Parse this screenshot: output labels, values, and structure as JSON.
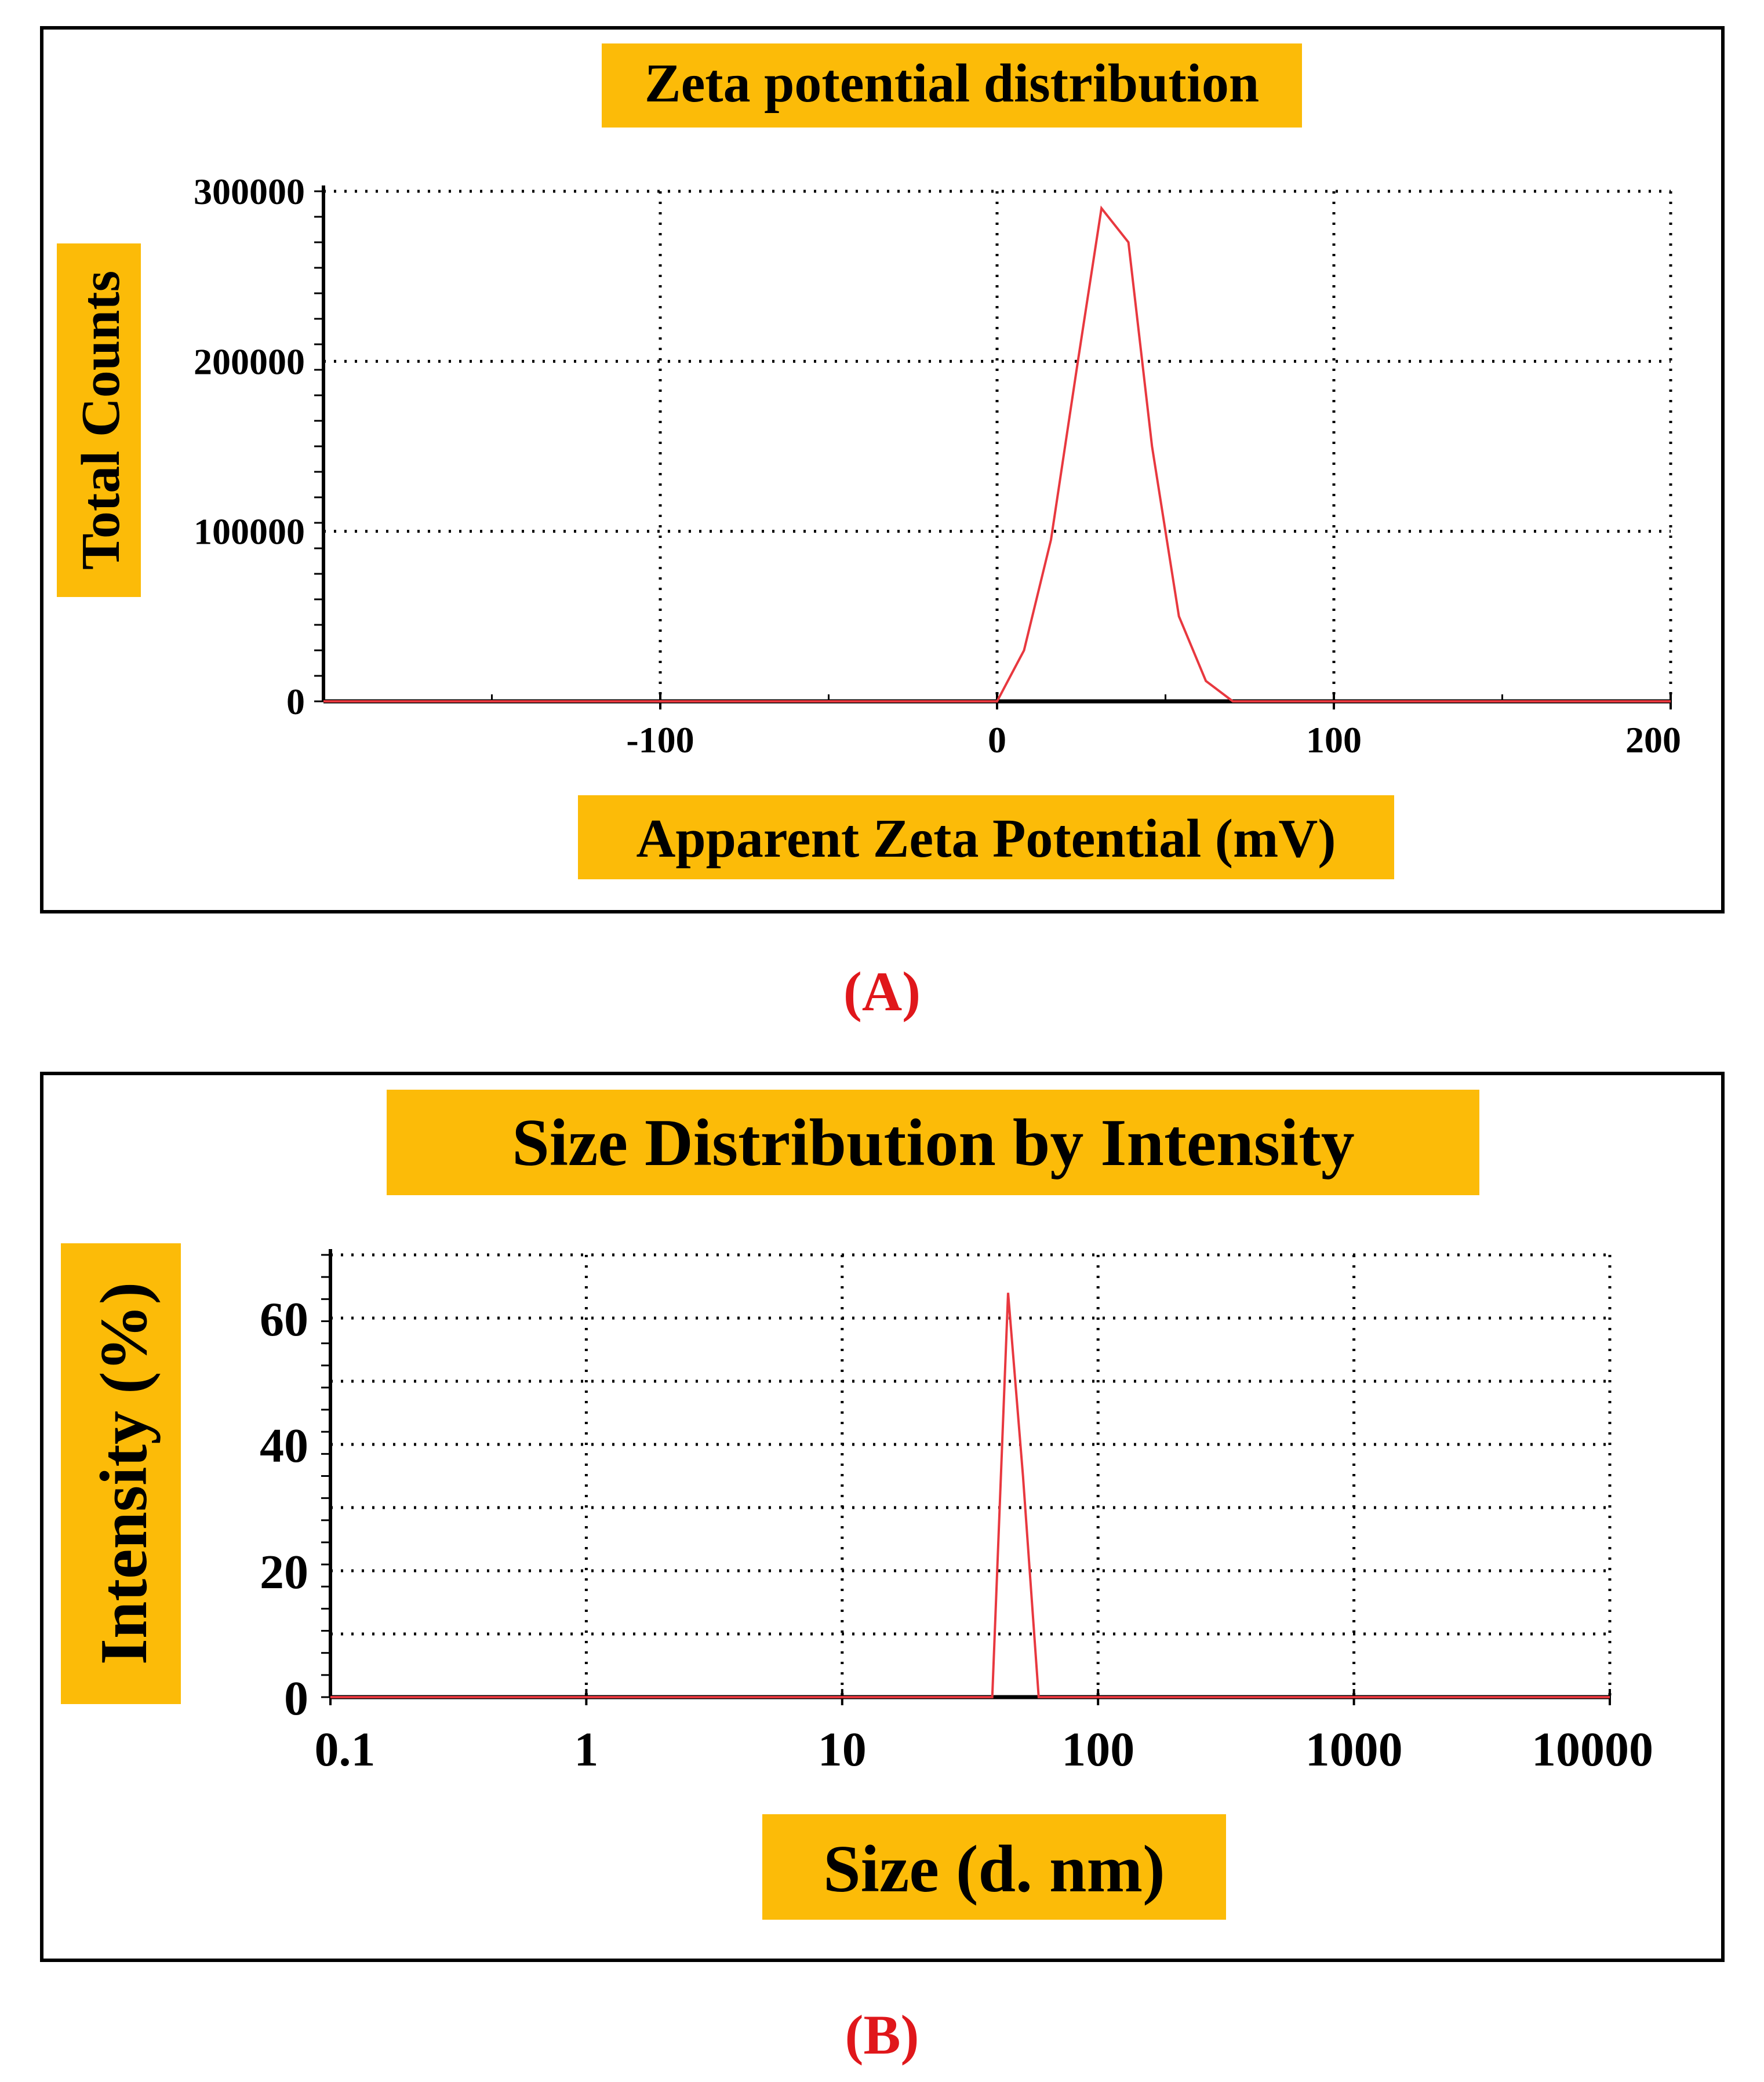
{
  "colors": {
    "highlight": "#FCBB08",
    "series": "#E8383F",
    "caption": "#E0171B",
    "axis": "#000000"
  },
  "panels": [
    {
      "caption": "(A)"
    },
    {
      "caption": "(B)"
    }
  ],
  "chart_data": [
    {
      "type": "line",
      "title": "Zeta potential distribution",
      "xlabel": "Apparent Zeta Potential (mV)",
      "ylabel": "Total Counts",
      "xscale": "linear",
      "xlim": [
        -200,
        200
      ],
      "ylim": [
        0,
        300000
      ],
      "xticks": [
        -100,
        0,
        100,
        200
      ],
      "xtick_labels": [
        "-100",
        "0",
        "100",
        "200"
      ],
      "yticks": [
        0,
        100000,
        200000,
        300000
      ],
      "ytick_labels": [
        "0",
        "100000",
        "200000",
        "300000"
      ],
      "grid": true,
      "series": [
        {
          "name": "Zeta potential",
          "x": [
            -200,
            -100,
            0,
            8,
            16,
            24,
            31,
            39,
            46,
            54,
            62,
            70,
            100,
            200
          ],
          "y": [
            0,
            0,
            0,
            30000,
            95000,
            200000,
            290000,
            270000,
            150000,
            50000,
            12000,
            0,
            0,
            0
          ]
        }
      ]
    },
    {
      "type": "line",
      "title": "Size Distribution by Intensity",
      "xlabel": "Size (d. nm)",
      "ylabel": "Intensity (%)",
      "xscale": "log",
      "xlim": [
        0.1,
        10000
      ],
      "ylim": [
        0,
        70
      ],
      "xticks": [
        0.1,
        1,
        10,
        100,
        1000,
        10000
      ],
      "xtick_labels": [
        "0.1",
        "1",
        "10",
        "100",
        "1000",
        "10000"
      ],
      "yticks": [
        0,
        20,
        40,
        60
      ],
      "ytick_labels": [
        "0",
        "20",
        "40",
        "60"
      ],
      "gridlines_y": [
        10,
        20,
        30,
        40,
        50,
        60,
        70
      ],
      "grid": true,
      "series": [
        {
          "name": "Intensity",
          "x": [
            0.1,
            38.6,
            44.5,
            50.9,
            58.6,
            10000
          ],
          "y": [
            0,
            0,
            64,
            35,
            0,
            0
          ]
        }
      ]
    }
  ]
}
